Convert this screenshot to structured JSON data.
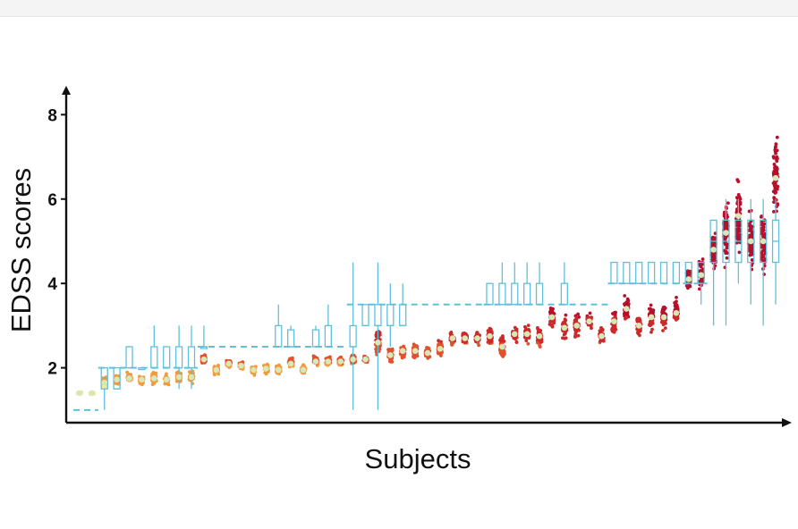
{
  "chart_data": {
    "type": "scatter",
    "xlabel": "Subjects",
    "ylabel": "EDSS scores",
    "ylim": [
      0.7,
      8.6
    ],
    "yticks": [
      2,
      4,
      6,
      8
    ],
    "x_ticks_shown": false,
    "grid": false,
    "legend": "none",
    "colors": {
      "points_low": "#f6e8a0",
      "points_mid": "#f29a3c",
      "points_high": "#b80f2a",
      "median_marker": "#d7e7b6",
      "box": "#5fc0dc",
      "axis": "#111111"
    },
    "subjects": [
      {
        "id": 1,
        "obs_mean": 1.4,
        "obs_spread": 0.03,
        "box": null
      },
      {
        "id": 2,
        "obs_mean": 1.4,
        "obs_spread": 0.03,
        "box": null
      },
      {
        "id": 3,
        "obs_mean": 1.65,
        "obs_spread": 0.15,
        "box": {
          "q1": 1.5,
          "median": 1.75,
          "q3": 2.0,
          "whisker_low": 1.0,
          "whisker_high": 2.0
        }
      },
      {
        "id": 4,
        "obs_mean": 1.72,
        "obs_spread": 0.12,
        "box": {
          "q1": 1.5,
          "median": 1.5,
          "q3": 2.0,
          "whisker_low": 1.5,
          "whisker_high": 2.0
        }
      },
      {
        "id": 5,
        "obs_mean": 1.75,
        "obs_spread": 0.12,
        "box": {
          "q1": 2.0,
          "median": 2.0,
          "q3": 2.5,
          "whisker_low": 2.0,
          "whisker_high": 2.5
        }
      },
      {
        "id": 6,
        "obs_mean": 1.72,
        "obs_spread": 0.1,
        "box": {
          "q1": 2.0,
          "median": 2.0,
          "q3": 2.0,
          "whisker_low": 2.0,
          "whisker_high": 2.0
        }
      },
      {
        "id": 7,
        "obs_mean": 1.75,
        "obs_spread": 0.14,
        "box": {
          "q1": 2.0,
          "median": 2.0,
          "q3": 2.5,
          "whisker_low": 2.0,
          "whisker_high": 3.0
        }
      },
      {
        "id": 8,
        "obs_mean": 1.72,
        "obs_spread": 0.12,
        "box": {
          "q1": 2.0,
          "median": 2.0,
          "q3": 2.5,
          "whisker_low": 2.0,
          "whisker_high": 2.5
        }
      },
      {
        "id": 9,
        "obs_mean": 1.78,
        "obs_spread": 0.14,
        "box": {
          "q1": 2.0,
          "median": 2.0,
          "q3": 2.5,
          "whisker_low": 1.5,
          "whisker_high": 3.0
        }
      },
      {
        "id": 10,
        "obs_mean": 1.78,
        "obs_spread": 0.14,
        "box": {
          "q1": 2.0,
          "median": 2.0,
          "q3": 2.5,
          "whisker_low": 1.5,
          "whisker_high": 3.0
        }
      },
      {
        "id": 11,
        "obs_mean": 2.2,
        "obs_spread": 0.12,
        "box": {
          "q1": 2.5,
          "median": 2.5,
          "q3": 2.5,
          "whisker_low": 2.5,
          "whisker_high": 3.0
        }
      },
      {
        "id": 12,
        "obs_mean": 1.95,
        "obs_spread": 0.12,
        "box": null
      },
      {
        "id": 13,
        "obs_mean": 2.1,
        "obs_spread": 0.1,
        "box": null
      },
      {
        "id": 14,
        "obs_mean": 2.05,
        "obs_spread": 0.1,
        "box": null
      },
      {
        "id": 15,
        "obs_mean": 1.95,
        "obs_spread": 0.14,
        "box": null
      },
      {
        "id": 16,
        "obs_mean": 1.98,
        "obs_spread": 0.12,
        "box": null
      },
      {
        "id": 17,
        "obs_mean": 1.95,
        "obs_spread": 0.12,
        "box": {
          "q1": 2.5,
          "median": 2.5,
          "q3": 3.0,
          "whisker_low": 2.5,
          "whisker_high": 3.5
        }
      },
      {
        "id": 18,
        "obs_mean": 2.1,
        "obs_spread": 0.14,
        "box": {
          "q1": 2.5,
          "median": 2.5,
          "q3": 2.9,
          "whisker_low": 2.5,
          "whisker_high": 3.0
        }
      },
      {
        "id": 19,
        "obs_mean": 1.95,
        "obs_spread": 0.12,
        "box": null
      },
      {
        "id": 20,
        "obs_mean": 2.15,
        "obs_spread": 0.12,
        "box": {
          "q1": 2.5,
          "median": 2.5,
          "q3": 2.9,
          "whisker_low": 2.5,
          "whisker_high": 3.0
        }
      },
      {
        "id": 21,
        "obs_mean": 2.15,
        "obs_spread": 0.12,
        "box": {
          "q1": 2.5,
          "median": 2.5,
          "q3": 3.0,
          "whisker_low": 2.5,
          "whisker_high": 3.5
        }
      },
      {
        "id": 22,
        "obs_mean": 2.15,
        "obs_spread": 0.12,
        "box": null
      },
      {
        "id": 23,
        "obs_mean": 2.2,
        "obs_spread": 0.12,
        "box": {
          "q1": 2.5,
          "median": 2.5,
          "q3": 3.0,
          "whisker_low": 1.0,
          "whisker_high": 4.5
        }
      },
      {
        "id": 24,
        "obs_mean": 2.2,
        "obs_spread": 0.08,
        "box": {
          "q1": 3.0,
          "median": 3.0,
          "q3": 3.5,
          "whisker_low": 3.0,
          "whisker_high": 3.5
        }
      },
      {
        "id": 25,
        "obs_mean": 2.6,
        "obs_spread": 0.3,
        "box": {
          "q1": 3.0,
          "median": 3.0,
          "q3": 3.5,
          "whisker_low": 1.0,
          "whisker_high": 4.5
        }
      },
      {
        "id": 26,
        "obs_mean": 2.3,
        "obs_spread": 0.2,
        "box": {
          "q1": 3.0,
          "median": 3.0,
          "q3": 3.5,
          "whisker_low": 2.5,
          "whisker_high": 4.0
        }
      },
      {
        "id": 27,
        "obs_mean": 2.4,
        "obs_spread": 0.18,
        "box": {
          "q1": 3.0,
          "median": 3.0,
          "q3": 3.5,
          "whisker_low": 3.0,
          "whisker_high": 4.0
        }
      },
      {
        "id": 28,
        "obs_mean": 2.4,
        "obs_spread": 0.15,
        "box": null
      },
      {
        "id": 29,
        "obs_mean": 2.35,
        "obs_spread": 0.15,
        "box": null
      },
      {
        "id": 30,
        "obs_mean": 2.45,
        "obs_spread": 0.18,
        "box": null
      },
      {
        "id": 31,
        "obs_mean": 2.7,
        "obs_spread": 0.18,
        "box": null
      },
      {
        "id": 32,
        "obs_mean": 2.7,
        "obs_spread": 0.18,
        "box": null
      },
      {
        "id": 33,
        "obs_mean": 2.7,
        "obs_spread": 0.18,
        "box": null
      },
      {
        "id": 34,
        "obs_mean": 2.75,
        "obs_spread": 0.22,
        "box": {
          "q1": 3.5,
          "median": 3.5,
          "q3": 4.0,
          "whisker_low": 3.5,
          "whisker_high": 4.0
        }
      },
      {
        "id": 35,
        "obs_mean": 2.5,
        "obs_spread": 0.3,
        "box": {
          "q1": 3.5,
          "median": 3.5,
          "q3": 4.0,
          "whisker_low": 3.5,
          "whisker_high": 4.5
        }
      },
      {
        "id": 36,
        "obs_mean": 2.8,
        "obs_spread": 0.18,
        "box": {
          "q1": 3.5,
          "median": 3.5,
          "q3": 4.0,
          "whisker_low": 3.5,
          "whisker_high": 4.5
        }
      },
      {
        "id": 37,
        "obs_mean": 2.8,
        "obs_spread": 0.2,
        "box": {
          "q1": 3.5,
          "median": 3.5,
          "q3": 4.0,
          "whisker_low": 3.5,
          "whisker_high": 4.5
        }
      },
      {
        "id": 38,
        "obs_mean": 2.75,
        "obs_spread": 0.25,
        "box": {
          "q1": 3.5,
          "median": 3.5,
          "q3": 4.0,
          "whisker_low": 3.5,
          "whisker_high": 4.5
        }
      },
      {
        "id": 39,
        "obs_mean": 3.2,
        "obs_spread": 0.25,
        "box": null
      },
      {
        "id": 40,
        "obs_mean": 2.95,
        "obs_spread": 0.25,
        "box": {
          "q1": 3.5,
          "median": 3.5,
          "q3": 4.0,
          "whisker_low": 3.5,
          "whisker_high": 4.5
        }
      },
      {
        "id": 41,
        "obs_mean": 3.0,
        "obs_spread": 0.28,
        "box": null
      },
      {
        "id": 42,
        "obs_mean": 3.1,
        "obs_spread": 0.22,
        "box": null
      },
      {
        "id": 43,
        "obs_mean": 2.75,
        "obs_spread": 0.2,
        "box": null
      },
      {
        "id": 44,
        "obs_mean": 3.1,
        "obs_spread": 0.3,
        "box": {
          "q1": 4.0,
          "median": 4.0,
          "q3": 4.5,
          "whisker_low": 4.0,
          "whisker_high": 4.5
        }
      },
      {
        "id": 45,
        "obs_mean": 3.4,
        "obs_spread": 0.28,
        "box": {
          "q1": 4.0,
          "median": 4.0,
          "q3": 4.5,
          "whisker_low": 4.0,
          "whisker_high": 4.5
        }
      },
      {
        "id": 46,
        "obs_mean": 3.0,
        "obs_spread": 0.25,
        "box": {
          "q1": 4.0,
          "median": 4.0,
          "q3": 4.5,
          "whisker_low": 4.0,
          "whisker_high": 4.5
        }
      },
      {
        "id": 47,
        "obs_mean": 3.2,
        "obs_spread": 0.3,
        "box": {
          "q1": 4.0,
          "median": 4.0,
          "q3": 4.5,
          "whisker_low": 4.0,
          "whisker_high": 4.5
        }
      },
      {
        "id": 48,
        "obs_mean": 3.2,
        "obs_spread": 0.3,
        "box": {
          "q1": 4.0,
          "median": 4.0,
          "q3": 4.5,
          "whisker_low": 4.0,
          "whisker_high": 4.5
        }
      },
      {
        "id": 49,
        "obs_mean": 3.3,
        "obs_spread": 0.3,
        "box": {
          "q1": 4.0,
          "median": 4.0,
          "q3": 4.5,
          "whisker_low": 4.0,
          "whisker_high": 4.5
        }
      },
      {
        "id": 50,
        "obs_mean": 4.1,
        "obs_spread": 0.3,
        "box": {
          "q1": 4.0,
          "median": 4.0,
          "q3": 4.5,
          "whisker_low": 4.0,
          "whisker_high": 4.5
        }
      },
      {
        "id": 51,
        "obs_mean": 4.2,
        "obs_spread": 0.35,
        "box": {
          "q1": 4.0,
          "median": 4.0,
          "q3": 4.5,
          "whisker_low": 3.5,
          "whisker_high": 4.5
        }
      },
      {
        "id": 52,
        "obs_mean": 4.8,
        "obs_spread": 0.5,
        "box": {
          "q1": 4.5,
          "median": 5.0,
          "q3": 5.5,
          "whisker_low": 3.0,
          "whisker_high": 5.5
        }
      },
      {
        "id": 53,
        "obs_mean": 5.2,
        "obs_spread": 0.7,
        "box": {
          "q1": 4.5,
          "median": 5.0,
          "q3": 5.5,
          "whisker_low": 3.0,
          "whisker_high": 6.0
        }
      },
      {
        "id": 54,
        "obs_mean": 5.6,
        "obs_spread": 0.8,
        "box": {
          "q1": 4.5,
          "median": 5.0,
          "q3": 5.5,
          "whisker_low": 4.0,
          "whisker_high": 6.0
        }
      },
      {
        "id": 55,
        "obs_mean": 5.0,
        "obs_spread": 0.7,
        "box": {
          "q1": 4.5,
          "median": 5.0,
          "q3": 5.5,
          "whisker_low": 3.5,
          "whisker_high": 6.0
        }
      },
      {
        "id": 56,
        "obs_mean": 5.0,
        "obs_spread": 0.7,
        "box": {
          "q1": 4.5,
          "median": 5.0,
          "q3": 5.5,
          "whisker_low": 3.0,
          "whisker_high": 6.0
        }
      },
      {
        "id": 57,
        "obs_mean": 6.5,
        "obs_spread": 0.9,
        "box": {
          "q1": 4.5,
          "median": 5.0,
          "q3": 5.5,
          "whisker_low": 3.5,
          "whisker_high": 6.0
        }
      }
    ],
    "step_line_levels": [
      {
        "from_subject": 1,
        "to_subject": 3,
        "value": 1.0
      },
      {
        "from_subject": 3,
        "to_subject": 11,
        "value": 2.0
      },
      {
        "from_subject": 11,
        "to_subject": 23,
        "value": 2.5
      },
      {
        "from_subject": 23,
        "to_subject": 34,
        "value": 3.5
      },
      {
        "from_subject": 34,
        "to_subject": 44,
        "value": 3.5
      },
      {
        "from_subject": 44,
        "to_subject": 52,
        "value": 4.0
      }
    ]
  }
}
